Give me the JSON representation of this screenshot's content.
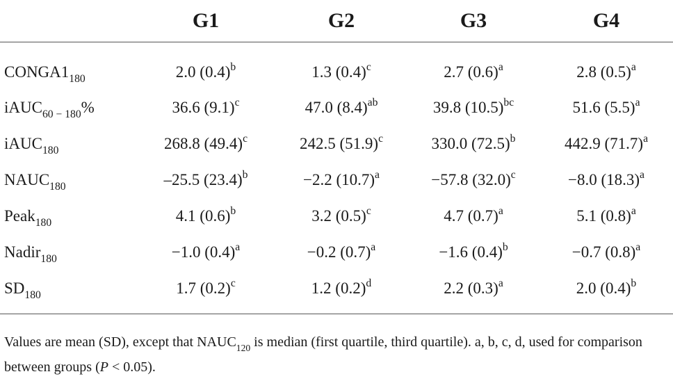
{
  "table": {
    "headers": [
      "",
      "G1",
      "G2",
      "G3",
      "G4"
    ],
    "rows": [
      {
        "label": {
          "base": "CONGA1",
          "sub": "180",
          "after": ""
        },
        "cells": [
          {
            "value": "2.0 (0.4)",
            "sup": "b"
          },
          {
            "value": "1.3 (0.4)",
            "sup": "c"
          },
          {
            "value": "2.7 (0.6)",
            "sup": "a"
          },
          {
            "value": "2.8 (0.5)",
            "sup": "a"
          }
        ]
      },
      {
        "label": {
          "base": "iAUC",
          "sub": "60 − 180",
          "after": "%"
        },
        "cells": [
          {
            "value": "36.6 (9.1)",
            "sup": "c"
          },
          {
            "value": "47.0 (8.4)",
            "sup": "ab"
          },
          {
            "value": "39.8 (10.5)",
            "sup": "bc"
          },
          {
            "value": "51.6 (5.5)",
            "sup": "a"
          }
        ]
      },
      {
        "label": {
          "base": "iAUC",
          "sub": "180",
          "after": ""
        },
        "cells": [
          {
            "value": "268.8 (49.4)",
            "sup": "c"
          },
          {
            "value": "242.5 (51.9)",
            "sup": "c"
          },
          {
            "value": "330.0 (72.5)",
            "sup": "b"
          },
          {
            "value": "442.9 (71.7)",
            "sup": "a"
          }
        ]
      },
      {
        "label": {
          "base": "NAUC",
          "sub": "180",
          "after": ""
        },
        "cells": [
          {
            "value": "–25.5 (23.4)",
            "sup": "b"
          },
          {
            "value": "−2.2 (10.7)",
            "sup": "a"
          },
          {
            "value": "−57.8 (32.0)",
            "sup": "c"
          },
          {
            "value": "−8.0 (18.3)",
            "sup": "a"
          }
        ]
      },
      {
        "label": {
          "base": "Peak",
          "sub": "180",
          "after": ""
        },
        "cells": [
          {
            "value": "4.1 (0.6)",
            "sup": "b"
          },
          {
            "value": "3.2 (0.5)",
            "sup": "c"
          },
          {
            "value": "4.7 (0.7)",
            "sup": "a"
          },
          {
            "value": "5.1 (0.8)",
            "sup": "a"
          }
        ]
      },
      {
        "label": {
          "base": "Nadir",
          "sub": "180",
          "after": ""
        },
        "cells": [
          {
            "value": "−1.0 (0.4)",
            "sup": "a"
          },
          {
            "value": "−0.2 (0.7)",
            "sup": "a"
          },
          {
            "value": "−1.6 (0.4)",
            "sup": "b"
          },
          {
            "value": "−0.7 (0.8)",
            "sup": "a"
          }
        ]
      },
      {
        "label": {
          "base": "SD",
          "sub": "180",
          "after": ""
        },
        "cells": [
          {
            "value": "1.7 (0.2)",
            "sup": "c"
          },
          {
            "value": "1.2 (0.2)",
            "sup": "d"
          },
          {
            "value": "2.2 (0.3)",
            "sup": "a"
          },
          {
            "value": "2.0 (0.4)",
            "sup": "b"
          }
        ]
      }
    ]
  },
  "footnote": {
    "part1": "Values are mean (SD), except that NAUC",
    "sub": "120",
    "part2": " is median (first quartile, third quartile). a, b, c, d, used for comparison between groups (",
    "italic": "P",
    "part3": " < 0.05)."
  }
}
